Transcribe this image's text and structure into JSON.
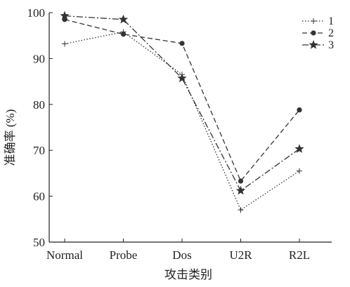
{
  "chart_data": {
    "type": "line",
    "title": "",
    "xlabel": "攻击类别",
    "ylabel": "准确率 (%)",
    "categories": [
      "Normal",
      "Probe",
      "Dos",
      "U2R",
      "R2L"
    ],
    "ylim": [
      50,
      100
    ],
    "yticks": [
      50,
      60,
      70,
      80,
      90,
      100
    ],
    "grid": false,
    "legend_position": "top-right",
    "series": [
      {
        "name": "1",
        "values": [
          93.2,
          95.8,
          86.5,
          57.0,
          65.5
        ],
        "line_style": "dotted",
        "marker": "plus"
      },
      {
        "name": "2",
        "values": [
          98.5,
          95.3,
          93.3,
          63.3,
          78.8
        ],
        "line_style": "dashed",
        "marker": "circle"
      },
      {
        "name": "3",
        "values": [
          99.3,
          98.5,
          85.7,
          61.2,
          70.3
        ],
        "line_style": "dash-dot",
        "marker": "star"
      }
    ],
    "color": "#333333"
  }
}
